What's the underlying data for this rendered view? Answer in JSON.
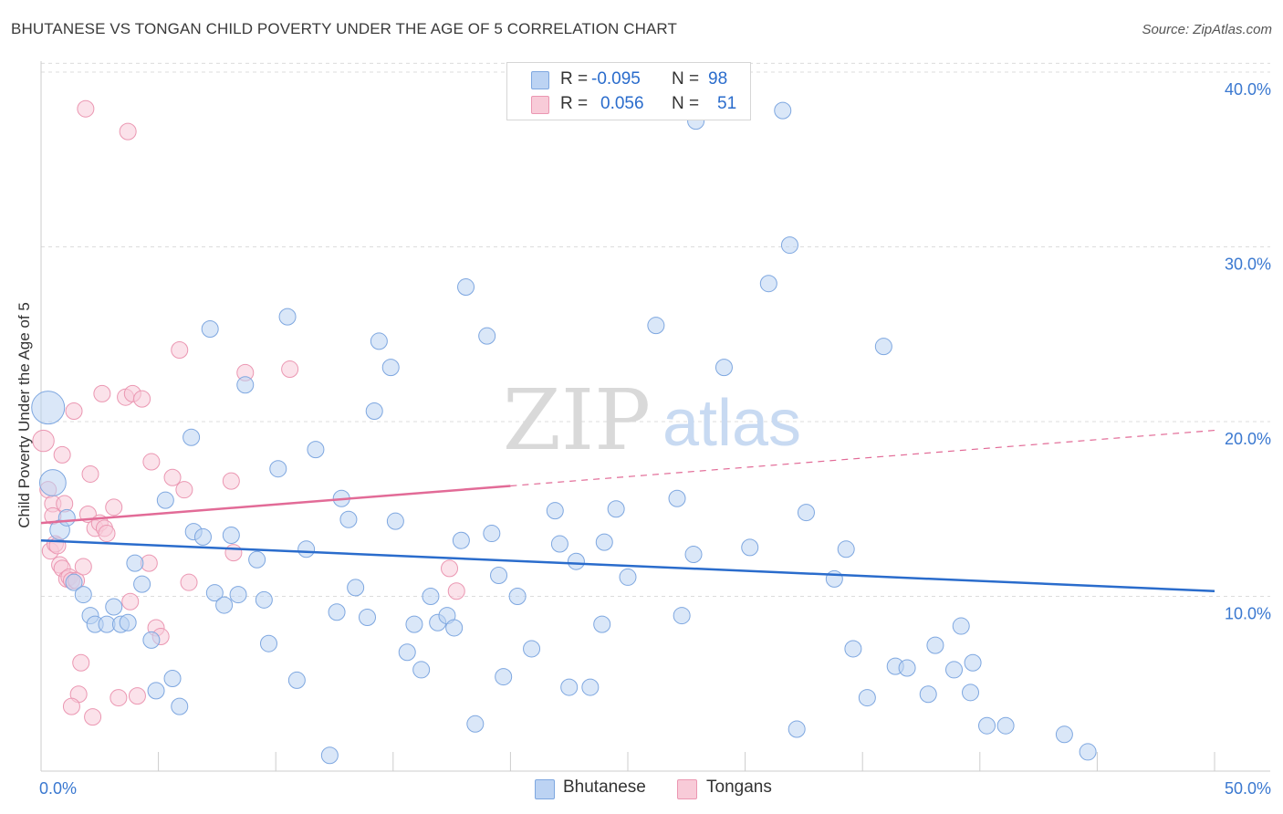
{
  "header": {
    "title": "BHUTANESE VS TONGAN CHILD POVERTY UNDER THE AGE OF 5 CORRELATION CHART",
    "source": "Source: ZipAtlas.com"
  },
  "watermark": {
    "zip": "ZIP",
    "atlas": "atlas"
  },
  "legend": {
    "rows": [
      {
        "r_label": "R =",
        "r_value": "-0.095",
        "n_label": "N =",
        "n_value": "98"
      },
      {
        "r_label": "R =",
        "r_value": "0.056",
        "n_label": "N =",
        "n_value": "51"
      }
    ]
  },
  "bottom_legend": {
    "items": [
      "Bhutanese",
      "Tongans"
    ]
  },
  "colors": {
    "blue_fill": "#bcd3f3",
    "blue_stroke": "#7ea7e0",
    "blue_line": "#2a6ccc",
    "pink_fill": "#f8cbd8",
    "pink_stroke": "#eb97b2",
    "pink_line": "#e26b97",
    "tick_text": "#3a78d0"
  },
  "chart_data": {
    "type": "scatter",
    "title": "BHUTANESE VS TONGAN CHILD POVERTY UNDER THE AGE OF 5 CORRELATION CHART",
    "xlabel": "",
    "ylabel": "Child Poverty Under the Age of 5",
    "xlim": [
      0,
      50
    ],
    "ylim": [
      0,
      40.5
    ],
    "x_tick_labels": [
      "0.0%",
      "50.0%"
    ],
    "y_ticks": [
      10,
      20,
      30,
      40
    ],
    "y_tick_labels": [
      "10.0%",
      "20.0%",
      "30.0%",
      "40.0%"
    ],
    "series": [
      {
        "name": "Bhutanese",
        "r": -0.095,
        "n": 98,
        "trend": {
          "x": [
            0,
            50
          ],
          "y": [
            13.2,
            10.3
          ]
        },
        "points": [
          [
            0.3,
            20.8,
            2.0
          ],
          [
            0.5,
            16.5,
            1.6
          ],
          [
            0.8,
            13.8,
            1.2
          ],
          [
            1.1,
            14.5,
            1
          ],
          [
            1.4,
            10.8,
            1
          ],
          [
            1.8,
            10.1,
            1
          ],
          [
            2.1,
            8.9,
            1
          ],
          [
            2.3,
            8.4,
            1
          ],
          [
            2.8,
            8.4,
            1
          ],
          [
            3.1,
            9.4,
            1
          ],
          [
            3.4,
            8.4,
            1
          ],
          [
            3.7,
            8.5,
            1
          ],
          [
            4.0,
            11.9,
            1
          ],
          [
            4.3,
            10.7,
            1
          ],
          [
            4.7,
            7.5,
            1
          ],
          [
            4.9,
            4.6,
            1
          ],
          [
            5.3,
            15.5,
            1
          ],
          [
            5.6,
            5.3,
            1
          ],
          [
            5.9,
            3.7,
            1
          ],
          [
            6.4,
            19.1,
            1
          ],
          [
            6.5,
            13.7,
            1
          ],
          [
            6.9,
            13.4,
            1
          ],
          [
            7.2,
            25.3,
            1
          ],
          [
            7.4,
            10.2,
            1
          ],
          [
            7.8,
            9.5,
            1
          ],
          [
            8.1,
            13.5,
            1
          ],
          [
            8.4,
            10.1,
            1
          ],
          [
            8.7,
            22.1,
            1
          ],
          [
            9.2,
            12.1,
            1
          ],
          [
            9.5,
            9.8,
            1
          ],
          [
            9.7,
            7.3,
            1
          ],
          [
            10.1,
            17.3,
            1
          ],
          [
            10.5,
            26.0,
            1
          ],
          [
            10.9,
            5.2,
            1
          ],
          [
            11.3,
            12.7,
            1
          ],
          [
            11.7,
            18.4,
            1
          ],
          [
            12.3,
            0.9,
            1
          ],
          [
            12.6,
            9.1,
            1
          ],
          [
            12.8,
            15.6,
            1
          ],
          [
            13.1,
            14.4,
            1
          ],
          [
            13.4,
            10.5,
            1
          ],
          [
            13.9,
            8.8,
            1
          ],
          [
            14.2,
            20.6,
            1
          ],
          [
            14.4,
            24.6,
            1
          ],
          [
            14.9,
            23.1,
            1
          ],
          [
            15.1,
            14.3,
            1
          ],
          [
            15.6,
            6.8,
            1
          ],
          [
            15.9,
            8.4,
            1
          ],
          [
            16.2,
            5.8,
            1
          ],
          [
            16.6,
            10.0,
            1
          ],
          [
            16.9,
            8.5,
            1
          ],
          [
            17.3,
            8.9,
            1
          ],
          [
            17.6,
            8.2,
            1
          ],
          [
            17.9,
            13.2,
            1
          ],
          [
            18.1,
            27.7,
            1
          ],
          [
            18.5,
            2.7,
            1
          ],
          [
            19.0,
            24.9,
            1
          ],
          [
            19.2,
            13.6,
            1
          ],
          [
            19.5,
            11.2,
            1
          ],
          [
            19.7,
            5.4,
            1
          ],
          [
            20.3,
            10.0,
            1
          ],
          [
            20.9,
            7.0,
            1
          ],
          [
            21.9,
            14.9,
            1
          ],
          [
            22.1,
            13.0,
            1
          ],
          [
            22.5,
            4.8,
            1
          ],
          [
            22.8,
            12.0,
            1
          ],
          [
            23.4,
            4.8,
            1
          ],
          [
            23.9,
            8.4,
            1
          ],
          [
            24.0,
            13.1,
            1
          ],
          [
            24.5,
            15.0,
            1
          ],
          [
            25.0,
            11.1,
            1
          ],
          [
            26.2,
            25.5,
            1
          ],
          [
            27.1,
            15.6,
            1
          ],
          [
            27.3,
            8.9,
            1
          ],
          [
            27.8,
            12.4,
            1
          ],
          [
            27.9,
            37.2,
            1
          ],
          [
            29.1,
            23.1,
            1
          ],
          [
            30.2,
            12.8,
            1
          ],
          [
            31.0,
            27.9,
            1
          ],
          [
            31.6,
            37.8,
            1
          ],
          [
            31.9,
            30.1,
            1
          ],
          [
            32.2,
            2.4,
            1
          ],
          [
            32.6,
            14.8,
            1
          ],
          [
            33.8,
            11.0,
            1
          ],
          [
            34.3,
            12.7,
            1
          ],
          [
            34.6,
            7.0,
            1
          ],
          [
            35.2,
            4.2,
            1
          ],
          [
            35.9,
            24.3,
            1
          ],
          [
            36.4,
            6.0,
            1
          ],
          [
            36.9,
            5.9,
            1
          ],
          [
            37.8,
            4.4,
            1
          ],
          [
            38.1,
            7.2,
            1
          ],
          [
            38.9,
            5.8,
            1
          ],
          [
            39.2,
            8.3,
            1
          ],
          [
            39.6,
            4.5,
            1
          ],
          [
            39.7,
            6.2,
            1
          ],
          [
            40.3,
            2.6,
            1
          ],
          [
            41.1,
            2.6,
            1
          ],
          [
            43.6,
            2.1,
            1
          ],
          [
            44.6,
            1.1,
            1
          ]
        ]
      },
      {
        "name": "Tongans",
        "r": 0.056,
        "n": 51,
        "trend": {
          "x": [
            0,
            50
          ],
          "y": [
            14.2,
            19.5
          ],
          "solid_until_x": 20
        },
        "points": [
          [
            0.1,
            18.9,
            1.3
          ],
          [
            0.3,
            16.1,
            1
          ],
          [
            0.4,
            12.6,
            1
          ],
          [
            0.5,
            15.3,
            1
          ],
          [
            0.5,
            14.6,
            1
          ],
          [
            0.6,
            13.0,
            1
          ],
          [
            0.7,
            12.9,
            1
          ],
          [
            0.8,
            11.8,
            1
          ],
          [
            0.9,
            11.6,
            1
          ],
          [
            0.9,
            18.1,
            1
          ],
          [
            1.0,
            15.3,
            1
          ],
          [
            1.1,
            11.0,
            1
          ],
          [
            1.2,
            11.1,
            1
          ],
          [
            1.3,
            10.9,
            1
          ],
          [
            1.4,
            20.6,
            1
          ],
          [
            1.5,
            10.9,
            1
          ],
          [
            1.6,
            4.4,
            1
          ],
          [
            1.7,
            6.2,
            1
          ],
          [
            1.8,
            11.7,
            1
          ],
          [
            1.9,
            37.9,
            1
          ],
          [
            2.0,
            14.7,
            1
          ],
          [
            2.1,
            17.0,
            1
          ],
          [
            2.2,
            3.1,
            1
          ],
          [
            2.3,
            13.9,
            1
          ],
          [
            2.5,
            14.2,
            1
          ],
          [
            2.6,
            21.6,
            1
          ],
          [
            2.7,
            13.9,
            1
          ],
          [
            2.8,
            13.6,
            1
          ],
          [
            3.1,
            15.1,
            1
          ],
          [
            3.3,
            4.2,
            1
          ],
          [
            3.6,
            21.4,
            1
          ],
          [
            3.7,
            36.6,
            1
          ],
          [
            3.8,
            9.7,
            1
          ],
          [
            3.9,
            21.6,
            1
          ],
          [
            4.1,
            4.3,
            1
          ],
          [
            4.3,
            21.3,
            1
          ],
          [
            4.6,
            11.9,
            1
          ],
          [
            4.7,
            17.7,
            1
          ],
          [
            4.9,
            8.2,
            1
          ],
          [
            5.1,
            7.7,
            1
          ],
          [
            5.6,
            16.8,
            1
          ],
          [
            5.9,
            24.1,
            1
          ],
          [
            6.1,
            16.1,
            1
          ],
          [
            6.3,
            10.8,
            1
          ],
          [
            8.1,
            16.6,
            1
          ],
          [
            8.2,
            12.5,
            1
          ],
          [
            8.7,
            22.8,
            1
          ],
          [
            10.6,
            23.0,
            1
          ],
          [
            17.4,
            11.6,
            1
          ],
          [
            17.7,
            10.3,
            1
          ],
          [
            1.3,
            3.7,
            1
          ]
        ]
      }
    ]
  }
}
